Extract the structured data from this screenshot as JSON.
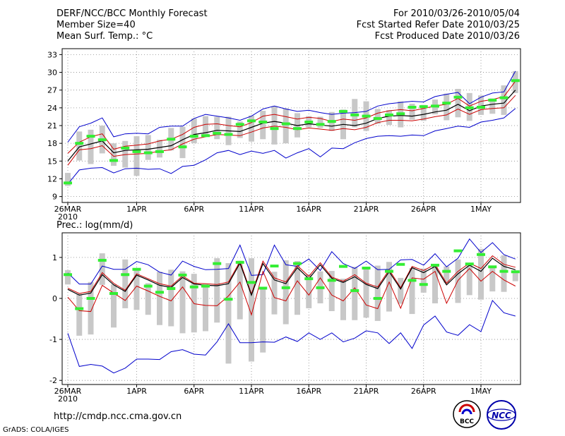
{
  "header": {
    "left": [
      "DERF/NCC/BCC Monthly Forecast",
      "Member Size=40",
      "Mean Surf. Temp.: °C"
    ],
    "right": [
      "For 2010/03/26-2010/05/04",
      "Fcst Started Refer Date 2010/03/25",
      "Fcst Produced Date 2010/03/26"
    ]
  },
  "footer": {
    "url": "http://cmdp.ncc.cma.gov.cn",
    "credit": "GrADS: COLA/IGES"
  },
  "logos": {
    "bcc": "BCC",
    "ncc": "NCC"
  },
  "colors": {
    "mean": "#000000",
    "upper_lower": "#0000cc",
    "inner": "#cc0000",
    "obs": "#33ee33",
    "box": "#c8c8c8",
    "grid": "#888888"
  },
  "chart_data": [
    {
      "type": "line",
      "title": "Mean Surf. Temp.: °C",
      "ylim": [
        8,
        34
      ],
      "yticks": [
        9,
        12,
        15,
        18,
        21,
        24,
        27,
        30,
        33
      ],
      "x_date_labels": [
        "26MAR",
        "1APR",
        "6APR",
        "11APR",
        "16APR",
        "21APR",
        "26APR",
        "1MAY"
      ],
      "x_year_label": "2010",
      "days": 40,
      "series": [
        {
          "name": "ensemble max",
          "values": [
            18.2,
            20.8,
            21.4,
            22.3,
            19.1,
            19.6,
            19.7,
            19.6,
            20.7,
            20.9,
            20.9,
            22.2,
            22.9,
            22.6,
            22.3,
            21.9,
            22.6,
            23.8,
            24.3,
            23.8,
            23.4,
            23.6,
            23.2,
            22.9,
            23.1,
            23.2,
            23.4,
            24.3,
            24.7,
            24.9,
            25.1,
            25.0,
            25.9,
            26.3,
            26.6,
            24.7,
            25.8,
            26.5,
            26.7,
            30.2
          ]
        },
        {
          "name": "upper (red)",
          "values": [
            16.3,
            18.2,
            19.1,
            19.6,
            17.0,
            17.5,
            17.7,
            17.9,
            18.4,
            18.7,
            19.5,
            20.7,
            21.2,
            21.3,
            21.0,
            20.8,
            21.5,
            22.6,
            22.9,
            22.5,
            22.1,
            22.4,
            22.2,
            21.7,
            22.1,
            21.9,
            22.3,
            23.1,
            23.5,
            23.7,
            23.5,
            23.9,
            24.3,
            24.6,
            25.6,
            24.3,
            25.1,
            25.4,
            25.9,
            28.5
          ]
        },
        {
          "name": "mean (black)",
          "values": [
            15.0,
            17.4,
            17.9,
            18.4,
            16.4,
            16.8,
            16.9,
            17.0,
            17.3,
            17.6,
            18.6,
            19.5,
            19.8,
            20.2,
            20.1,
            20.0,
            20.7,
            21.4,
            21.7,
            21.4,
            21.0,
            21.3,
            21.1,
            20.9,
            21.2,
            21.0,
            21.4,
            22.2,
            22.6,
            22.7,
            22.6,
            22.9,
            23.3,
            23.6,
            24.6,
            23.5,
            24.3,
            24.6,
            24.8,
            27.0
          ]
        },
        {
          "name": "lower (red)",
          "values": [
            14.3,
            16.9,
            17.1,
            17.6,
            15.8,
            16.1,
            16.2,
            16.3,
            16.7,
            16.9,
            17.9,
            18.7,
            19.1,
            19.5,
            19.4,
            19.3,
            19.9,
            20.6,
            20.9,
            20.7,
            20.3,
            20.6,
            20.4,
            20.2,
            20.5,
            20.3,
            20.7,
            21.5,
            21.9,
            21.9,
            21.8,
            22.1,
            22.5,
            22.8,
            23.8,
            22.9,
            23.7,
            23.9,
            24.0,
            26.1
          ]
        },
        {
          "name": "ensemble min",
          "values": [
            11.1,
            13.5,
            13.8,
            13.9,
            13.0,
            13.7,
            13.8,
            13.6,
            13.7,
            12.9,
            14.1,
            14.3,
            15.2,
            16.4,
            16.8,
            16.1,
            16.7,
            16.3,
            16.8,
            15.5,
            16.4,
            17.1,
            15.7,
            17.2,
            17.1,
            18.1,
            18.8,
            19.2,
            19.3,
            19.2,
            19.4,
            19.3,
            20.1,
            20.5,
            20.9,
            20.7,
            21.6,
            21.9,
            22.3,
            23.9
          ]
        },
        {
          "name": "observed (green)",
          "values": [
            11.3,
            18.0,
            19.2,
            18.6,
            15.1,
            17.2,
            16.6,
            16.4,
            16.6,
            18.7,
            17.4,
            19.2,
            19.3,
            19.7,
            19.5,
            21.2,
            21.8,
            21.6,
            20.5,
            21.3,
            20.5,
            21.6,
            21.2,
            21.7,
            23.4,
            22.8,
            22.6,
            22.2,
            22.8,
            23.0,
            24.1,
            24.2,
            24.3,
            24.8,
            25.8,
            24.0,
            24.1,
            25.3,
            25.7,
            28.6
          ]
        },
        {
          "name": "box top",
          "values": [
            13.0,
            20.0,
            20.3,
            21.0,
            18.0,
            18.4,
            19.2,
            19.4,
            18.6,
            20.6,
            20.8,
            22.2,
            22.6,
            22.5,
            22.5,
            21.7,
            22.7,
            23.5,
            24.3,
            23.9,
            23.1,
            22.6,
            22.5,
            23.3,
            23.7,
            25.5,
            25.1,
            23.8,
            23.6,
            25.1,
            24.7,
            24.5,
            25.4,
            26.4,
            27.2,
            26.5,
            26.1,
            25.6,
            27.8,
            30.2
          ]
        },
        {
          "name": "box bottom",
          "values": [
            10.8,
            15.1,
            14.5,
            16.3,
            14.2,
            13.9,
            12.5,
            15.2,
            15.6,
            16.8,
            15.5,
            18.0,
            19.2,
            18.7,
            17.7,
            18.9,
            18.3,
            18.7,
            17.8,
            18.0,
            19.0,
            20.7,
            20.6,
            20.1,
            18.7,
            20.7,
            20.1,
            21.3,
            21.1,
            20.7,
            22.0,
            21.8,
            22.9,
            21.9,
            22.4,
            21.8,
            22.8,
            23.0,
            22.8,
            26.5
          ]
        }
      ]
    },
    {
      "type": "line",
      "title": "Prec.: log(mm/d)",
      "ylim": [
        -2.1,
        1.6
      ],
      "yticks": [
        -2,
        -1,
        0,
        1
      ],
      "x_date_labels": [
        "26MAR",
        "1APR",
        "6APR",
        "11APR",
        "16APR",
        "21APR",
        "26APR",
        "1MAY"
      ],
      "x_year_label": "2010",
      "days": 40,
      "series": [
        {
          "name": "ensemble max",
          "values": [
            0.62,
            0.35,
            0.35,
            0.79,
            0.71,
            0.71,
            0.9,
            0.82,
            0.64,
            0.57,
            0.91,
            0.78,
            0.7,
            0.71,
            0.73,
            1.3,
            0.56,
            0.58,
            1.3,
            0.82,
            0.78,
            0.96,
            0.68,
            1.14,
            0.85,
            0.73,
            0.91,
            0.7,
            0.71,
            0.94,
            0.95,
            0.81,
            1.09,
            0.77,
            0.98,
            1.45,
            1.12,
            1.36,
            1.07,
            0.96
          ]
        },
        {
          "name": "upper (red)",
          "values": [
            0.25,
            0.12,
            0.17,
            0.63,
            0.37,
            0.2,
            0.6,
            0.48,
            0.36,
            0.3,
            0.55,
            0.37,
            0.36,
            0.34,
            0.4,
            0.9,
            0.11,
            0.91,
            0.5,
            0.4,
            0.8,
            0.54,
            0.87,
            0.52,
            0.42,
            0.58,
            0.37,
            0.28,
            0.7,
            0.26,
            0.78,
            0.68,
            0.83,
            0.37,
            0.66,
            0.86,
            0.73,
            1.04,
            0.83,
            0.76
          ]
        },
        {
          "name": "mean (black)",
          "values": [
            0.22,
            0.08,
            0.13,
            0.58,
            0.33,
            0.17,
            0.57,
            0.45,
            0.32,
            0.27,
            0.51,
            0.35,
            0.32,
            0.31,
            0.36,
            0.86,
            0.08,
            0.85,
            0.45,
            0.36,
            0.75,
            0.48,
            0.82,
            0.49,
            0.39,
            0.53,
            0.34,
            0.24,
            0.65,
            0.23,
            0.75,
            0.63,
            0.78,
            0.33,
            0.6,
            0.81,
            0.66,
            0.98,
            0.78,
            0.7
          ]
        },
        {
          "name": "lower (red)",
          "values": [
            0.03,
            -0.3,
            -0.32,
            0.32,
            0.13,
            -0.05,
            0.3,
            0.18,
            0.05,
            -0.06,
            0.28,
            -0.13,
            -0.17,
            -0.18,
            0.06,
            0.4,
            -0.4,
            0.66,
            0.02,
            -0.06,
            0.43,
            0.08,
            0.5,
            0.08,
            -0.06,
            0.26,
            -0.16,
            -0.25,
            0.4,
            -0.24,
            0.5,
            0.47,
            0.66,
            -0.12,
            0.44,
            0.73,
            0.42,
            0.66,
            0.45,
            0.3
          ]
        },
        {
          "name": "ensemble min",
          "values": [
            -0.85,
            -1.66,
            -1.61,
            -1.65,
            -1.82,
            -1.7,
            -1.48,
            -1.48,
            -1.49,
            -1.3,
            -1.25,
            -1.36,
            -1.38,
            -1.06,
            -0.62,
            -1.08,
            -1.08,
            -1.06,
            -1.07,
            -0.94,
            -1.05,
            -0.84,
            -1.0,
            -0.84,
            -1.06,
            -0.97,
            -0.79,
            -0.84,
            -1.1,
            -0.84,
            -1.22,
            -0.65,
            -0.43,
            -0.82,
            -0.9,
            -0.64,
            -0.81,
            -0.05,
            -0.35,
            -0.43
          ]
        },
        {
          "name": "observed (green)",
          "values": [
            0.58,
            -0.25,
            0.0,
            0.93,
            0.12,
            0.58,
            0.71,
            0.3,
            0.15,
            0.24,
            0.57,
            0.28,
            0.3,
            0.85,
            -0.02,
            0.88,
            0.39,
            0.25,
            0.79,
            0.26,
            0.85,
            0.48,
            0.26,
            0.44,
            0.78,
            0.19,
            0.74,
            0.0,
            0.66,
            0.83,
            0.44,
            0.34,
            0.81,
            0.66,
            1.16,
            0.84,
            1.07,
            0.77,
            0.66,
            0.65
          ]
        },
        {
          "name": "box top",
          "values": [
            0.69,
            0.11,
            0.4,
            1.1,
            0.34,
            0.95,
            0.69,
            0.37,
            0.65,
            0.7,
            0.66,
            0.6,
            0.35,
            0.98,
            0.86,
            0.92,
            0.98,
            0.26,
            0.65,
            0.93,
            0.91,
            0.59,
            0.66,
            0.67,
            0.48,
            0.77,
            0.75,
            0.8,
            0.89,
            0.5,
            0.74,
            0.73,
            0.82,
            0.78,
            0.95,
            0.86,
            1.21,
            0.8,
            1.05,
            0.66
          ]
        },
        {
          "name": "box bottom",
          "values": [
            0.34,
            -0.91,
            -0.88,
            0.33,
            -0.71,
            -0.24,
            -0.28,
            -0.4,
            -0.65,
            -0.68,
            -0.85,
            -0.83,
            -0.8,
            -0.59,
            -1.59,
            -0.51,
            -1.54,
            -1.32,
            -0.39,
            -0.63,
            -0.4,
            -0.24,
            -0.12,
            -0.31,
            -0.53,
            -0.53,
            -0.47,
            -0.55,
            -0.32,
            -0.13,
            -0.38,
            0.14,
            -0.12,
            0.38,
            -0.11,
            0.08,
            -0.03,
            0.17,
            0.16,
            0.42
          ]
        }
      ]
    }
  ]
}
